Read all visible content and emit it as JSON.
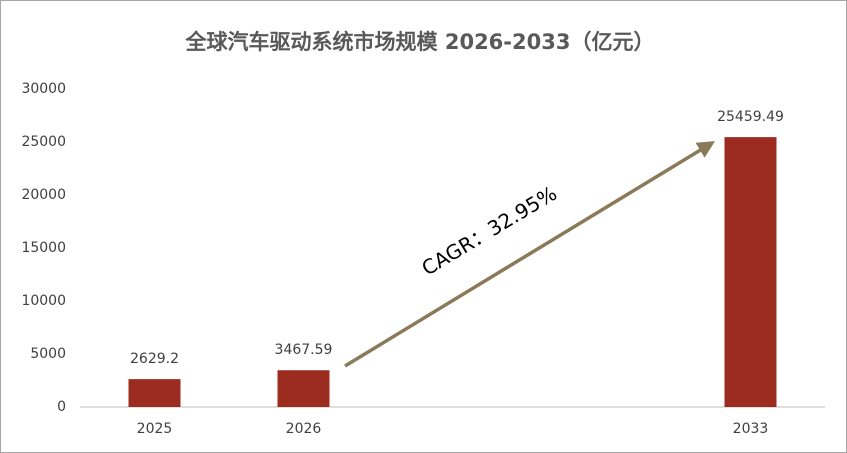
{
  "chart_data": {
    "type": "bar",
    "title": "全球汽车驱动系统市场规模 2026-2033（亿元）",
    "categories": [
      "2025",
      "2026",
      null,
      null,
      "2033"
    ],
    "values": [
      2629.2,
      3467.59,
      null,
      null,
      25459.49
    ],
    "color": "#9c2b20",
    "ylim": [
      0,
      30000
    ],
    "yticks": [
      0,
      5000,
      10000,
      15000,
      20000,
      25000,
      30000
    ],
    "grid": true,
    "annotation": "CAGR：32.95%"
  }
}
